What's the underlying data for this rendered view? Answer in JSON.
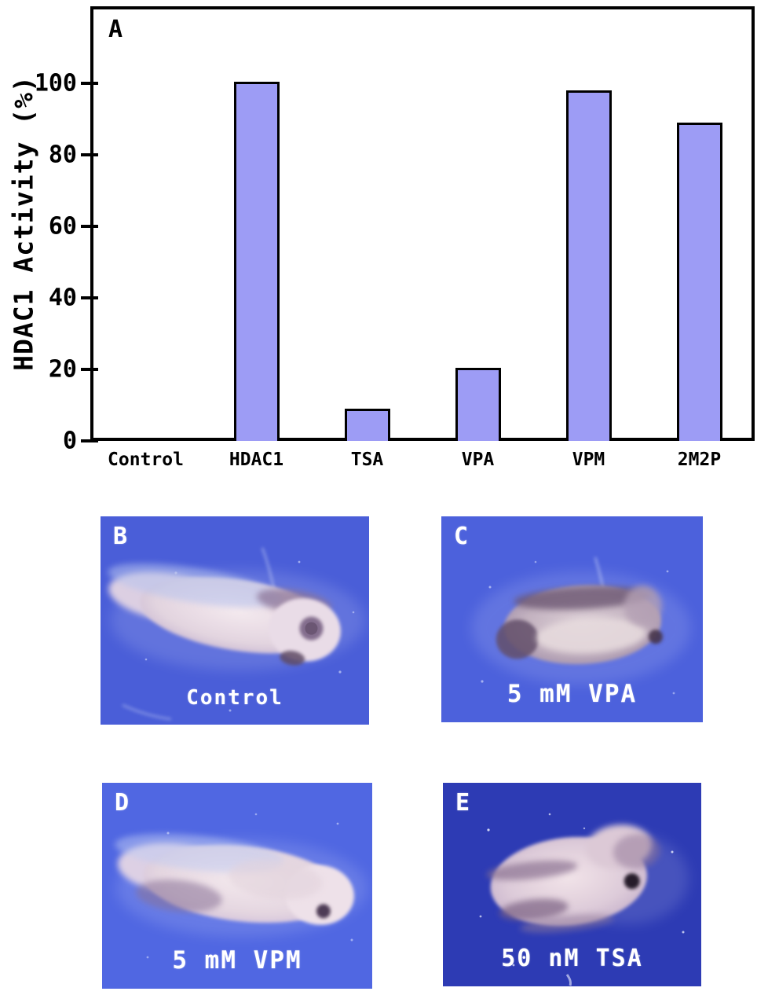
{
  "chart_data": {
    "type": "bar",
    "panel_label": "A",
    "categories": [
      "Control",
      "HDAC1",
      "TSA",
      "VPA",
      "VPM",
      "2M2P"
    ],
    "values": [
      0,
      100.5,
      9,
      20.5,
      98,
      89
    ],
    "title": "",
    "xlabel": "",
    "ylabel": "HDAC1 Activity (%)",
    "ylim": [
      0,
      121
    ],
    "yticks": [
      0,
      20,
      40,
      60,
      80,
      100
    ],
    "grid": false,
    "legend": "none",
    "bar_color": "#9d9cf5",
    "bar_border_color": "#000000"
  },
  "panels": [
    {
      "label": "B",
      "caption": "Control",
      "bg": "#4a5ed8"
    },
    {
      "label": "C",
      "caption": "5 mM VPA",
      "bg": "#4c61dc"
    },
    {
      "label": "D",
      "caption": "5 mM VPM",
      "bg": "#5067e2"
    },
    {
      "label": "E",
      "caption": "50 nM TSA",
      "bg": "#2d3bb4"
    }
  ]
}
